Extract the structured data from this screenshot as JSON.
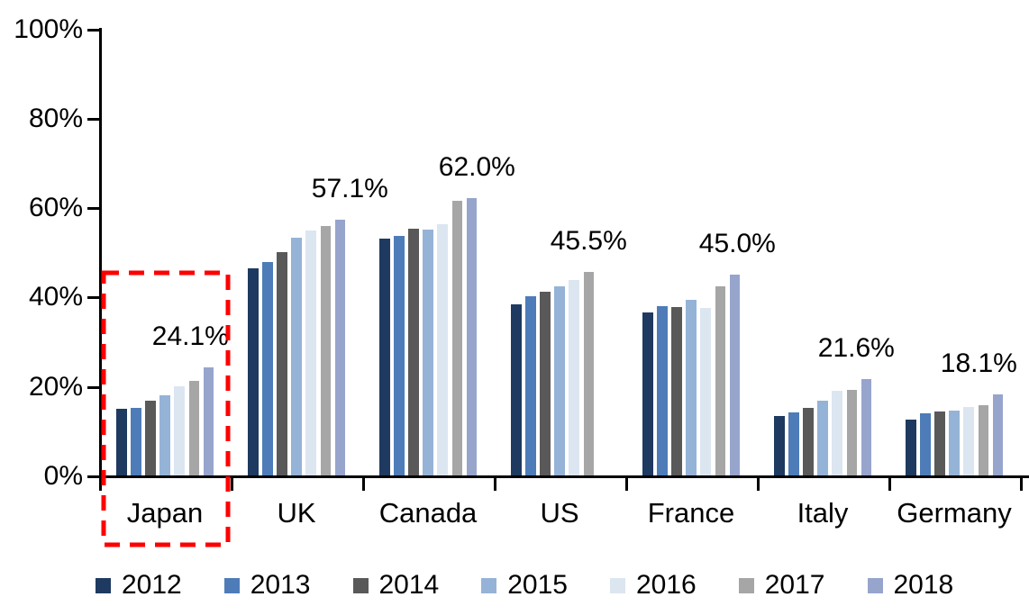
{
  "chart_data": {
    "type": "bar",
    "title": "",
    "categories": [
      "Japan",
      "UK",
      "Canada",
      "US",
      "France",
      "Italy",
      "Germany"
    ],
    "series": [
      {
        "name": "2012",
        "color": "#1F3A60",
        "values": [
          14.9,
          46.3,
          53.0,
          38.3,
          36.5,
          13.3,
          12.5
        ]
      },
      {
        "name": "2013",
        "color": "#4E7CB8",
        "values": [
          15.1,
          47.8,
          53.5,
          40.1,
          37.8,
          14.0,
          13.9
        ]
      },
      {
        "name": "2014",
        "color": "#595959",
        "values": [
          16.7,
          49.9,
          55.2,
          41.1,
          37.6,
          15.2,
          14.2
        ]
      },
      {
        "name": "2015",
        "color": "#95B3D7",
        "values": [
          18.0,
          53.1,
          54.9,
          42.2,
          39.3,
          16.8,
          14.6
        ]
      },
      {
        "name": "2016",
        "color": "#DCE6F1",
        "values": [
          19.9,
          54.7,
          56.2,
          43.8,
          37.4,
          18.9,
          15.3
        ]
      },
      {
        "name": "2017",
        "color": "#A6A6A6",
        "values": [
          21.2,
          55.7,
          61.5,
          45.5,
          42.2,
          19.1,
          15.8
        ]
      },
      {
        "name": "2018",
        "color": "#97A5CD",
        "values": [
          24.1,
          57.1,
          62.0,
          null,
          45.0,
          21.6,
          18.1
        ]
      }
    ],
    "value_labels": [
      "24.1%",
      "57.1%",
      "62.0%",
      "45.5%",
      "45.0%",
      "21.6%",
      "18.1%"
    ],
    "y_axis": {
      "min": 0,
      "max": 100,
      "ticks": [
        {
          "pct": 0,
          "label": "0%"
        },
        {
          "pct": 20,
          "label": "20%"
        },
        {
          "pct": 40,
          "label": "40%"
        },
        {
          "pct": 60,
          "label": "60%"
        },
        {
          "pct": 80,
          "label": "80%"
        },
        {
          "pct": 100,
          "label": "100%"
        }
      ]
    },
    "legend": {
      "position": "bottom",
      "entries": [
        "2012",
        "2013",
        "2014",
        "2015",
        "2016",
        "2017",
        "2018"
      ]
    },
    "highlight": {
      "target": "Japan",
      "shape": "dashed-rectangle",
      "color": "#FF0000"
    },
    "grid": false,
    "axis_color": "#000000",
    "background_color": "#FFFFFF"
  }
}
